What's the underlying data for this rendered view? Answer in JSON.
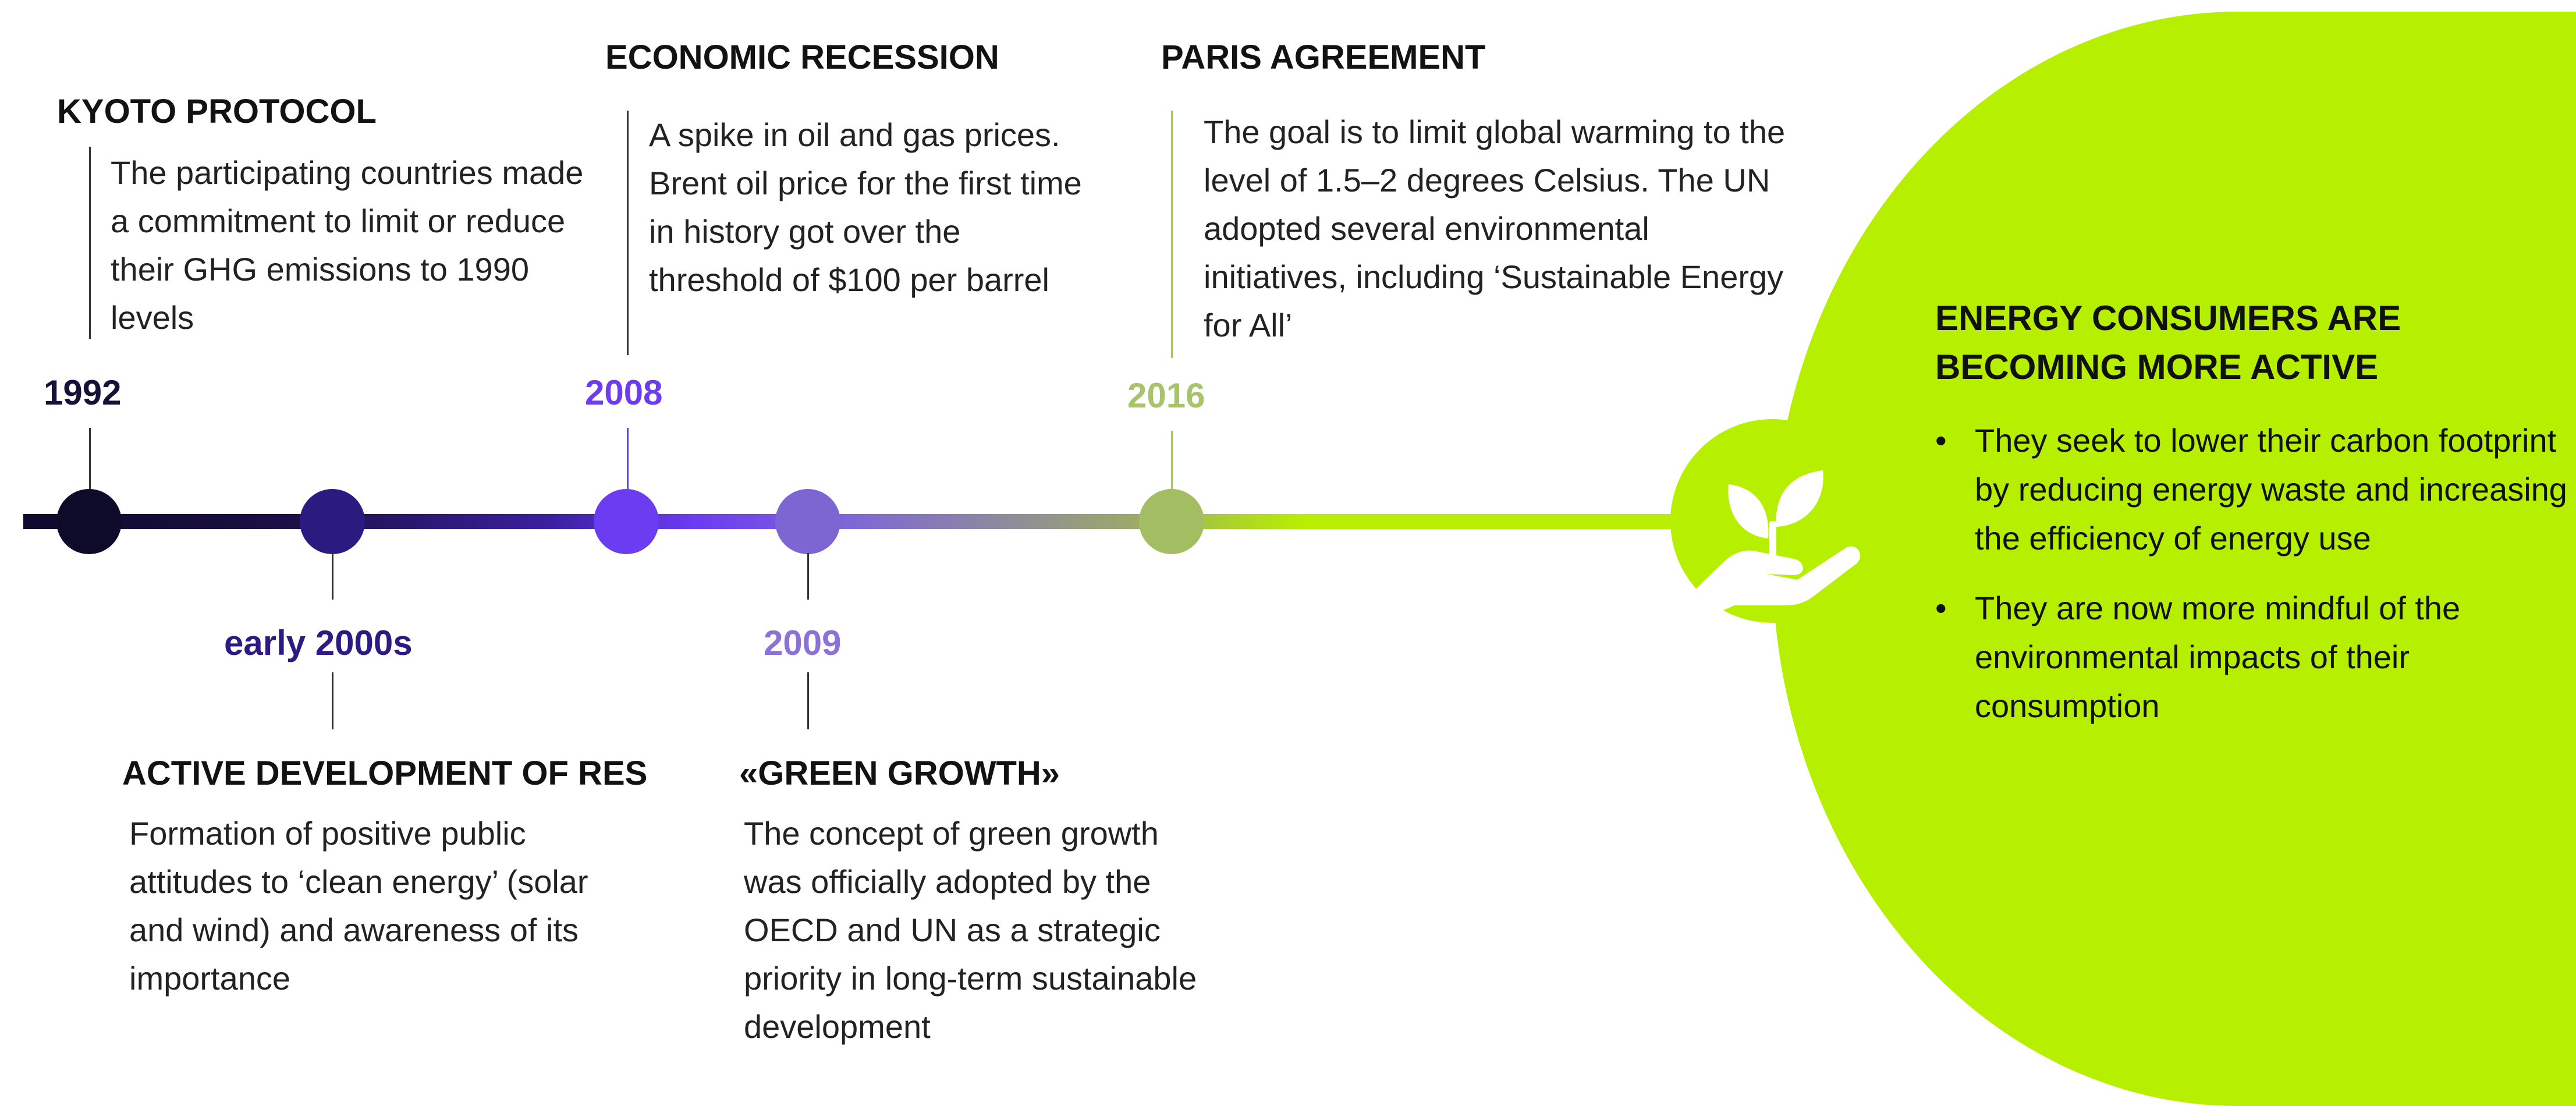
{
  "events": [
    {
      "id": "kyoto",
      "year": "1992",
      "title": "KYOTO PROTOCOL",
      "desc": "The participating countries made a commitment to limit or reduce their GHG emissions to 1990 levels",
      "color": "#15123a"
    },
    {
      "id": "res",
      "year": "early 2000s",
      "title": "ACTIVE DEVELOPMENT OF RES",
      "desc": "Formation of positive public attitudes to ‘clean energy’ (solar and wind) and awareness of its importance",
      "color": "#2d1a82"
    },
    {
      "id": "recession",
      "year": "2008",
      "title": "ECONOMIC RECESSION",
      "desc": "A spike in oil and gas prices. Brent oil price for the first time in history got over the threshold of $100 per barrel",
      "color": "#6b3cf0"
    },
    {
      "id": "green",
      "year": "2009",
      "title": "«GREEN GROWTH»",
      "desc": "The concept of green growth was officially adopted by the OECD and UN as a strategic priority in long-term sustainable development",
      "color": "#8a72d6"
    },
    {
      "id": "paris",
      "year": "2016",
      "title": "PARIS AGREEMENT",
      "desc": "The goal is to limit global warming to the level of 1.5–2 degrees Celsius. The UN adopted several environmental initiatives, including ‘Sustainable Energy for All’",
      "color": "#a8c46a"
    }
  ],
  "conclusion": {
    "title": "ENERGY CONSUMERS ARE BECOMING MORE ACTIVE",
    "bullets": [
      "They seek to lower their carbon footprint by reducing energy waste and increasing the efficiency of energy use",
      "They are now more mindful of the environmental impacts of their consumption"
    ],
    "icon": "plant-in-hand-icon",
    "accent_color": "#b6ef00"
  }
}
